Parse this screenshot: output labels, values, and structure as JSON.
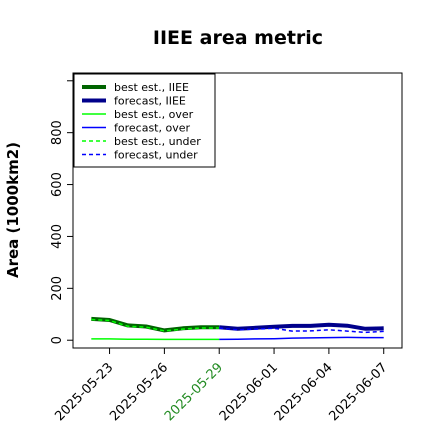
{
  "chart_data": {
    "type": "line",
    "title": "IIEE area metric",
    "xlabel": "",
    "ylabel": "Area (1000km2)",
    "ylim": [
      -30,
      1030
    ],
    "xlim": [
      "2025-05-21",
      "2025-06-08"
    ],
    "yticks": [
      "0",
      "200",
      "400",
      "600",
      "800"
    ],
    "ytick_values": [
      0,
      200,
      400,
      600,
      800
    ],
    "xticks": [
      "2025-05-23",
      "2025-05-26",
      "2025-05-29",
      "2025-06-01",
      "2025-06-04",
      "2025-06-07"
    ],
    "highlight_tick": "2025-05-29",
    "highlight_color": "#228b22",
    "legend_position": "top-left",
    "series": [
      {
        "name": "best est., IIEE",
        "color": "#006400",
        "style": "solid",
        "width": 4,
        "x": [
          "2025-05-22",
          "2025-05-23",
          "2025-05-24",
          "2025-05-25",
          "2025-05-26",
          "2025-05-27",
          "2025-05-28",
          "2025-05-29"
        ],
        "values": [
          82,
          78,
          57,
          53,
          38,
          46,
          50,
          50
        ]
      },
      {
        "name": "forecast, IIEE",
        "color": "#00008b",
        "style": "solid",
        "width": 4,
        "x": [
          "2025-05-29",
          "2025-05-30",
          "2025-05-31",
          "2025-06-01",
          "2025-06-02",
          "2025-06-03",
          "2025-06-04",
          "2025-06-05",
          "2025-06-06",
          "2025-06-07"
        ],
        "values": [
          50,
          44,
          48,
          52,
          55,
          55,
          60,
          56,
          44,
          46
        ]
      },
      {
        "name": "best est., over",
        "color": "#00ff00",
        "style": "solid",
        "width": 1.5,
        "x": [
          "2025-05-22",
          "2025-05-23",
          "2025-05-24",
          "2025-05-25",
          "2025-05-26",
          "2025-05-27",
          "2025-05-28",
          "2025-05-29"
        ],
        "values": [
          5,
          5,
          4,
          4,
          3,
          3,
          3,
          3
        ]
      },
      {
        "name": "forecast, over",
        "color": "#0000ff",
        "style": "solid",
        "width": 1.5,
        "x": [
          "2025-05-29",
          "2025-05-30",
          "2025-05-31",
          "2025-06-01",
          "2025-06-02",
          "2025-06-03",
          "2025-06-04",
          "2025-06-05",
          "2025-06-06",
          "2025-06-07"
        ],
        "values": [
          3,
          4,
          5,
          6,
          8,
          9,
          10,
          11,
          10,
          10
        ]
      },
      {
        "name": "best est., under",
        "color": "#00ff00",
        "style": "dashed",
        "width": 1.5,
        "x": [
          "2025-05-22",
          "2025-05-23",
          "2025-05-24",
          "2025-05-25",
          "2025-05-26",
          "2025-05-27",
          "2025-05-28",
          "2025-05-29"
        ],
        "values": [
          80,
          76,
          54,
          50,
          36,
          43,
          47,
          47
        ]
      },
      {
        "name": "forecast, under",
        "color": "#0000ff",
        "style": "dashed",
        "width": 1.5,
        "x": [
          "2025-05-29",
          "2025-05-30",
          "2025-05-31",
          "2025-06-01",
          "2025-06-02",
          "2025-06-03",
          "2025-06-04",
          "2025-06-05",
          "2025-06-06",
          "2025-06-07"
        ],
        "values": [
          47,
          40,
          43,
          46,
          35,
          36,
          40,
          35,
          30,
          34
        ]
      }
    ]
  }
}
